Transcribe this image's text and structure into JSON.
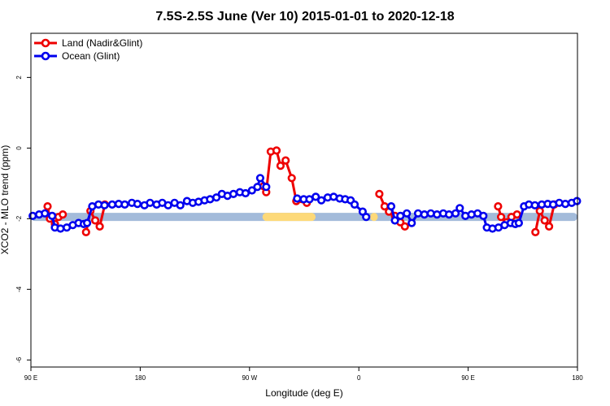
{
  "chart_data": {
    "type": "line",
    "title": "7.5S-2.5S June (Ver 10)   2015-01-01 to 2020-12-18",
    "xlabel": "Longitude (deg E)",
    "ylabel": "XCO2 - MLO trend (ppm)",
    "xlim": [
      90,
      450
    ],
    "ylim": [
      -6.2,
      3.25
    ],
    "x_ticks": [
      {
        "value": 90,
        "label": "90 E"
      },
      {
        "value": 162,
        "label": "180"
      },
      {
        "value": 234,
        "label": "90 W"
      },
      {
        "value": 306,
        "label": "0"
      },
      {
        "value": 378,
        "label": "90 E"
      },
      {
        "value": 450,
        "label": "180"
      }
    ],
    "y_ticks": [
      {
        "value": 2,
        "label": "2"
      },
      {
        "value": 0,
        "label": "0"
      },
      {
        "value": -2,
        "label": "-2"
      },
      {
        "value": -4,
        "label": "-4"
      },
      {
        "value": -6,
        "label": "-6"
      }
    ],
    "legend": {
      "position": "top-left",
      "entries": [
        {
          "label": "Land (Nadir&Glint)",
          "color": "#ee0000"
        },
        {
          "label": "Ocean (Glint)",
          "color": "#0000ee"
        }
      ]
    },
    "series": [
      {
        "name": "Land (Nadir&Glint)",
        "color": "#ee0000",
        "segments": [
          [
            [
              101.0,
              -1.65
            ],
            [
              102.5,
              -2.0
            ],
            [
              105.8,
              -2.15
            ],
            [
              108.2,
              -1.95
            ],
            [
              111.0,
              -1.88
            ]
          ],
          [
            [
              126.3,
              -2.38
            ],
            [
              129.2,
              -1.78
            ],
            [
              132.4,
              -2.05
            ],
            [
              135.3,
              -2.22
            ],
            [
              138.7,
              -1.6
            ]
          ],
          [
            [
              243.2,
              -1.08
            ],
            [
              245.0,
              -1.25
            ],
            [
              248.0,
              -0.1
            ],
            [
              251.8,
              -0.07
            ],
            [
              254.4,
              -0.5
            ],
            [
              257.8,
              -0.35
            ],
            [
              261.8,
              -0.85
            ],
            [
              264.8,
              -1.5
            ],
            [
              271.7,
              -1.55
            ]
          ],
          [
            [
              319.5,
              -1.3
            ],
            [
              323.0,
              -1.65
            ],
            [
              325.8,
              -1.8
            ],
            [
              329.8,
              -1.92
            ],
            [
              333.3,
              -2.1
            ],
            [
              336.3,
              -2.22
            ]
          ],
          [
            [
              397.7,
              -1.65
            ],
            [
              399.7,
              -1.95
            ],
            [
              403.3,
              -2.1
            ],
            [
              406.5,
              -1.95
            ],
            [
              410.2,
              -1.88
            ]
          ],
          [
            [
              422.3,
              -2.38
            ],
            [
              425.2,
              -1.78
            ],
            [
              428.4,
              -2.05
            ],
            [
              431.3,
              -2.22
            ],
            [
              434.7,
              -1.6
            ]
          ]
        ]
      },
      {
        "name": "Ocean (Glint)",
        "color": "#0000ee",
        "segments": [
          [
            [
              91.2,
              -1.92
            ],
            [
              95.4,
              -1.88
            ],
            [
              99.2,
              -1.85
            ],
            [
              104.0,
              -1.92
            ],
            [
              105.8,
              -2.25
            ],
            [
              109.5,
              -2.28
            ],
            [
              113.6,
              -2.25
            ],
            [
              117.6,
              -2.18
            ],
            [
              121.4,
              -2.12
            ],
            [
              124.8,
              -2.15
            ],
            [
              127.0,
              -2.12
            ],
            [
              130.4,
              -1.65
            ],
            [
              134.5,
              -1.6
            ],
            [
              138.5,
              -1.62
            ],
            [
              143.5,
              -1.6
            ],
            [
              147.8,
              -1.58
            ],
            [
              151.8,
              -1.6
            ],
            [
              156.5,
              -1.55
            ],
            [
              160.2,
              -1.58
            ],
            [
              164.8,
              -1.62
            ],
            [
              168.5,
              -1.55
            ],
            [
              172.8,
              -1.6
            ],
            [
              176.5,
              -1.55
            ],
            [
              180.4,
              -1.62
            ],
            [
              184.6,
              -1.55
            ],
            [
              188.4,
              -1.62
            ],
            [
              192.8,
              -1.5
            ],
            [
              196.6,
              -1.55
            ],
            [
              200.4,
              -1.52
            ],
            [
              204.4,
              -1.48
            ],
            [
              208.0,
              -1.45
            ],
            [
              212.2,
              -1.4
            ],
            [
              215.8,
              -1.3
            ],
            [
              219.5,
              -1.35
            ],
            [
              223.4,
              -1.3
            ],
            [
              227.6,
              -1.25
            ],
            [
              231.4,
              -1.28
            ],
            [
              235.6,
              -1.2
            ],
            [
              239.2,
              -1.1
            ],
            [
              241.0,
              -0.85
            ],
            [
              245.0,
              -1.1
            ]
          ],
          [
            [
              265.4,
              -1.43
            ],
            [
              269.7,
              -1.45
            ],
            [
              273.5,
              -1.45
            ],
            [
              277.6,
              -1.38
            ],
            [
              281.3,
              -1.48
            ],
            [
              285.5,
              -1.4
            ],
            [
              289.4,
              -1.38
            ],
            [
              293.4,
              -1.43
            ],
            [
              297.0,
              -1.45
            ],
            [
              300.6,
              -1.48
            ],
            [
              303.2,
              -1.6
            ],
            [
              308.5,
              -1.8
            ]
          ],
          [
            [
              310.8,
              -1.95
            ]
          ],
          [
            [
              327.3,
              -1.65
            ],
            [
              329.8,
              -2.05
            ],
            [
              333.4,
              -1.92
            ],
            [
              337.6,
              -1.85
            ],
            [
              340.8,
              -2.12
            ],
            [
              345.0,
              -1.85
            ],
            [
              349.2,
              -1.88
            ],
            [
              353.4,
              -1.85
            ],
            [
              357.5,
              -1.88
            ],
            [
              361.6,
              -1.85
            ],
            [
              365.4,
              -1.88
            ],
            [
              369.7,
              -1.85
            ],
            [
              372.5,
              -1.7
            ],
            [
              376.2,
              -1.92
            ],
            [
              380.2,
              -1.88
            ],
            [
              384.2,
              -1.85
            ],
            [
              388.0,
              -1.92
            ],
            [
              390.3,
              -2.25
            ],
            [
              394.0,
              -2.28
            ],
            [
              398.0,
              -2.25
            ],
            [
              402.0,
              -2.18
            ],
            [
              406.0,
              -2.12
            ],
            [
              409.0,
              -2.15
            ],
            [
              411.4,
              -2.12
            ],
            [
              414.8,
              -1.65
            ],
            [
              418.0,
              -1.6
            ],
            [
              422.0,
              -1.62
            ],
            [
              426.5,
              -1.6
            ],
            [
              430.4,
              -1.58
            ],
            [
              434.0,
              -1.6
            ],
            [
              438.0,
              -1.55
            ],
            [
              442.0,
              -1.58
            ],
            [
              446.2,
              -1.55
            ],
            [
              449.7,
              -1.5
            ]
          ]
        ]
      }
    ],
    "bands": [
      {
        "name": "ocean-band",
        "color": "#a3bbda",
        "from": 90,
        "to": 450,
        "y": -1.95
      },
      {
        "name": "land-band",
        "color": "#fdd978",
        "ranges": [
          [
            242.5,
            277.5
          ],
          [
            313.5,
            318.5
          ]
        ],
        "y": -1.95
      }
    ]
  }
}
